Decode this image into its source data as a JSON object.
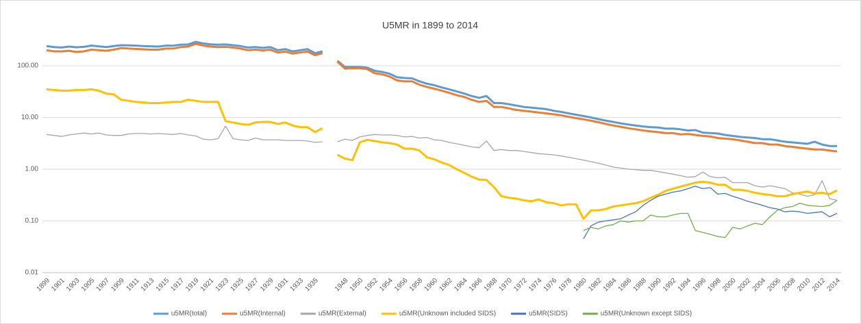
{
  "chart_data": {
    "type": "line",
    "title": "U5MR in 1899 to 2014",
    "categories": [
      "1899",
      null,
      "1901",
      null,
      "1903",
      null,
      "1905",
      null,
      "1907",
      null,
      "1909",
      null,
      "1911",
      null,
      "1913",
      null,
      "1915",
      null,
      "1917",
      null,
      "1919",
      null,
      "1921",
      null,
      "1923",
      null,
      "1925",
      null,
      "1927",
      null,
      "1929",
      null,
      "1931",
      null,
      "1933",
      null,
      "1935",
      null,
      null,
      null,
      "1948",
      null,
      "1950",
      null,
      "1952",
      null,
      "1954",
      null,
      "1956",
      null,
      "1958",
      null,
      "1960",
      null,
      "1962",
      null,
      "1964",
      null,
      "1966",
      null,
      "1968",
      null,
      "1970",
      null,
      "1972",
      null,
      "1974",
      null,
      "1976",
      null,
      "1978",
      null,
      "1980",
      null,
      "1982",
      null,
      "1984",
      null,
      "1986",
      null,
      "1988",
      null,
      "1990",
      null,
      "1992",
      null,
      "1994",
      null,
      "1996",
      null,
      "1998",
      null,
      "2000",
      null,
      "2002",
      null,
      "2004",
      null,
      "2006",
      null,
      "2008",
      null,
      "2010",
      null,
      "2012",
      null,
      "2014"
    ],
    "log_scale": true,
    "grid": true,
    "legend": "bottom",
    "ylim": [
      0.01,
      1000
    ],
    "yticks": [
      0.01,
      {
        "value": 0.1,
        "label": "0.10"
      },
      {
        "value": 1,
        "label": "1.00"
      },
      {
        "value": 10,
        "label": "10.00"
      },
      {
        "value": 100,
        "label": "100.00"
      }
    ],
    "series": [
      {
        "name": "u5MR(total)",
        "color": "#5b9bd5",
        "line_width": 3,
        "values": [
          240,
          230,
          225,
          235,
          228,
          232,
          245,
          238,
          230,
          240,
          250,
          248,
          245,
          240,
          238,
          235,
          245,
          245,
          255,
          258,
          290,
          270,
          260,
          255,
          258,
          250,
          240,
          225,
          230,
          222,
          230,
          200,
          210,
          190,
          200,
          210,
          175,
          190,
          null,
          125,
          95,
          95,
          95,
          92,
          80,
          76,
          70,
          60,
          58,
          57,
          50,
          45,
          42,
          38,
          35,
          32,
          29,
          26,
          24,
          26,
          19,
          19,
          18,
          17,
          16,
          15.5,
          15,
          14.5,
          13.5,
          12.8,
          12,
          11.3,
          10.7,
          10,
          9.3,
          8.7,
          8.2,
          7.7,
          7.3,
          7,
          6.7,
          6.5,
          6.4,
          6.1,
          6.1,
          5.9,
          5.6,
          5.7,
          5.1,
          5,
          4.9,
          4.6,
          4.4,
          4.2,
          4.1,
          4,
          3.8,
          3.8,
          3.6,
          3.4,
          3.3,
          3.2,
          3.1,
          3.4,
          3.0,
          2.8,
          2.8
        ]
      },
      {
        "name": "u5MR(Internal)",
        "color": "#ed7d31",
        "line_width": 3,
        "values": [
          200,
          190,
          190,
          195,
          185,
          190,
          205,
          200,
          195,
          205,
          220,
          215,
          212,
          208,
          205,
          205,
          215,
          215,
          230,
          235,
          265,
          245,
          235,
          230,
          232,
          225,
          215,
          200,
          205,
          198,
          205,
          180,
          188,
          172,
          180,
          188,
          160,
          175,
          null,
          120,
          88,
          90,
          89,
          86,
          72,
          68,
          62,
          52,
          50,
          50,
          43,
          39,
          36,
          33,
          30,
          27,
          25,
          22,
          20,
          21,
          16,
          16,
          15,
          14,
          13.5,
          13,
          12.5,
          12,
          11.5,
          11,
          10.3,
          9.7,
          9.2,
          8.7,
          8.1,
          7.5,
          7,
          6.6,
          6.2,
          5.9,
          5.6,
          5.4,
          5.2,
          5.0,
          5.0,
          4.7,
          4.8,
          4.6,
          4.4,
          4.3,
          4.0,
          3.9,
          3.8,
          3.6,
          3.4,
          3.2,
          3.2,
          3.0,
          3.0,
          2.8,
          2.7,
          2.6,
          2.5,
          2.4,
          2.4,
          2.3,
          2.2
        ]
      },
      {
        "name": "u5MR(External)",
        "color": "#a5a5a5",
        "line_width": 1.3,
        "values": [
          4.7,
          4.5,
          4.3,
          4.6,
          4.8,
          5.0,
          4.8,
          5.0,
          4.6,
          4.5,
          4.5,
          4.8,
          4.9,
          4.9,
          4.8,
          4.9,
          4.8,
          4.7,
          4.9,
          4.6,
          4.4,
          3.8,
          3.7,
          3.9,
          6.8,
          3.9,
          3.7,
          3.6,
          4.0,
          3.7,
          3.7,
          3.7,
          3.6,
          3.6,
          3.6,
          3.5,
          3.3,
          3.4,
          null,
          3.4,
          3.8,
          3.6,
          4.2,
          4.5,
          4.7,
          4.6,
          4.6,
          4.5,
          4.2,
          4.3,
          4.0,
          4.1,
          3.7,
          3.6,
          3.3,
          3.1,
          2.9,
          2.7,
          2.6,
          3.5,
          2.3,
          2.4,
          2.3,
          2.3,
          2.2,
          2.1,
          2.0,
          1.95,
          1.9,
          1.8,
          1.7,
          1.6,
          1.5,
          1.4,
          1.3,
          1.2,
          1.1,
          1.05,
          1.0,
          0.98,
          0.95,
          0.95,
          0.9,
          0.85,
          0.8,
          0.75,
          0.7,
          0.72,
          0.88,
          0.72,
          0.68,
          0.7,
          0.55,
          0.55,
          0.55,
          0.48,
          0.45,
          0.48,
          0.45,
          0.42,
          0.35,
          0.33,
          0.3,
          0.32,
          0.6,
          0.27,
          0.25
        ]
      },
      {
        "name": "u5MR(Unknown included SIDS)",
        "color": "#ffc000",
        "line_width": 3,
        "values": [
          35,
          34,
          33,
          33,
          34,
          34,
          35,
          33,
          29,
          28,
          22,
          21,
          20,
          19.5,
          19,
          19,
          19.5,
          20,
          20,
          22,
          21,
          20,
          20,
          20,
          8.5,
          8,
          7.5,
          7.2,
          8,
          8.2,
          8.2,
          7.5,
          8,
          7,
          6.5,
          6.5,
          5.2,
          6.2,
          null,
          1.9,
          1.6,
          1.5,
          3.3,
          3.7,
          3.5,
          3.3,
          3.2,
          3.0,
          2.5,
          2.5,
          2.3,
          1.7,
          1.55,
          1.35,
          1.2,
          1.0,
          0.85,
          0.72,
          0.63,
          0.62,
          0.45,
          0.3,
          0.28,
          0.27,
          0.25,
          0.24,
          0.26,
          0.23,
          0.22,
          0.2,
          0.21,
          0.21,
          0.11,
          0.16,
          0.16,
          0.17,
          0.19,
          0.2,
          0.21,
          0.22,
          0.24,
          0.28,
          0.32,
          0.38,
          0.42,
          0.46,
          0.5,
          0.55,
          0.57,
          0.55,
          0.5,
          0.5,
          0.4,
          0.4,
          0.38,
          0.35,
          0.33,
          0.32,
          0.3,
          0.3,
          0.33,
          0.35,
          0.37,
          0.34,
          0.35,
          0.33,
          0.39
        ]
      },
      {
        "name": "u5MR(SIDS)",
        "color": "#4472c4",
        "line_width": 1.3,
        "values": [
          null,
          null,
          null,
          null,
          null,
          null,
          null,
          null,
          null,
          null,
          null,
          null,
          null,
          null,
          null,
          null,
          null,
          null,
          null,
          null,
          null,
          null,
          null,
          null,
          null,
          null,
          null,
          null,
          null,
          null,
          null,
          null,
          null,
          null,
          null,
          null,
          null,
          null,
          null,
          null,
          null,
          null,
          null,
          null,
          null,
          null,
          null,
          null,
          null,
          null,
          null,
          null,
          null,
          null,
          null,
          null,
          null,
          null,
          null,
          null,
          null,
          null,
          null,
          null,
          null,
          null,
          null,
          null,
          null,
          null,
          null,
          null,
          0.045,
          0.08,
          0.095,
          0.1,
          0.105,
          0.11,
          0.13,
          0.15,
          0.2,
          0.25,
          0.3,
          0.33,
          0.36,
          0.38,
          0.42,
          0.47,
          0.42,
          0.44,
          0.33,
          0.34,
          0.3,
          0.27,
          0.24,
          0.22,
          0.2,
          0.18,
          0.17,
          0.15,
          0.155,
          0.15,
          0.14,
          0.145,
          0.15,
          0.12,
          0.14
        ]
      },
      {
        "name": "u5MR(Unknown except SIDS)",
        "color": "#70ad47",
        "line_width": 1.3,
        "values": [
          null,
          null,
          null,
          null,
          null,
          null,
          null,
          null,
          null,
          null,
          null,
          null,
          null,
          null,
          null,
          null,
          null,
          null,
          null,
          null,
          null,
          null,
          null,
          null,
          null,
          null,
          null,
          null,
          null,
          null,
          null,
          null,
          null,
          null,
          null,
          null,
          null,
          null,
          null,
          null,
          null,
          null,
          null,
          null,
          null,
          null,
          null,
          null,
          null,
          null,
          null,
          null,
          null,
          null,
          null,
          null,
          null,
          null,
          null,
          null,
          null,
          null,
          null,
          null,
          null,
          null,
          null,
          null,
          null,
          null,
          null,
          null,
          0.065,
          0.075,
          0.07,
          0.08,
          0.085,
          0.1,
          0.095,
          0.1,
          0.1,
          0.13,
          0.12,
          0.12,
          0.13,
          0.14,
          0.14,
          0.065,
          0.06,
          0.055,
          0.05,
          0.048,
          0.075,
          0.07,
          0.08,
          0.09,
          0.085,
          0.12,
          0.16,
          0.18,
          0.19,
          0.22,
          0.2,
          0.195,
          0.19,
          0.2,
          0.25
        ]
      }
    ]
  }
}
